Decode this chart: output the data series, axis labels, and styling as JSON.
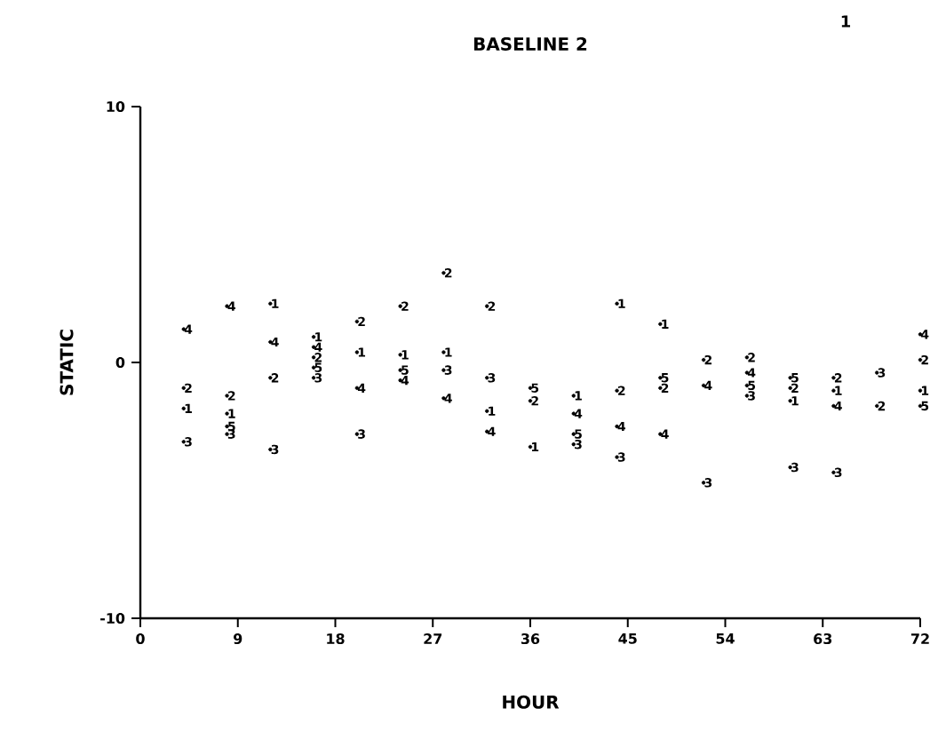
{
  "chart_data": {
    "type": "scatter",
    "title": "BASELINE  2",
    "xlabel": "HOUR",
    "ylabel": "STATIC",
    "annotations": [
      "1"
    ],
    "xlim": [
      0,
      72
    ],
    "xticks": [
      0,
      9,
      18,
      27,
      36,
      45,
      54,
      63,
      72
    ],
    "ylim": [
      -10,
      10
    ],
    "yticks": [
      -10,
      0,
      10
    ],
    "series": [
      {
        "name": "1",
        "color": "#000000",
        "x": [
          4,
          8,
          12,
          16,
          20,
          24,
          28,
          32,
          36,
          40,
          44,
          48,
          60,
          64,
          72
        ],
        "values": [
          -1.8,
          -2.0,
          2.3,
          1.0,
          0.4,
          0.3,
          0.4,
          -1.9,
          -3.3,
          -1.3,
          2.3,
          1.5,
          -1.5,
          -1.1,
          -1.1
        ]
      },
      {
        "name": "2",
        "color": "#000000",
        "x": [
          4,
          8,
          12,
          16,
          20,
          24,
          28,
          32,
          36,
          44,
          48,
          52,
          56,
          60,
          64,
          68,
          72
        ],
        "values": [
          -1.0,
          -1.3,
          -0.6,
          0.2,
          1.6,
          2.2,
          3.5,
          2.2,
          -1.5,
          -1.1,
          -1.0,
          0.1,
          0.2,
          -1.0,
          -0.6,
          -1.7,
          0.1
        ]
      },
      {
        "name": "3",
        "color": "#000000",
        "x": [
          4,
          8,
          12,
          16,
          20,
          28,
          32,
          40,
          44,
          52,
          56,
          60,
          64,
          68
        ],
        "values": [
          -3.1,
          -2.8,
          -3.4,
          -0.6,
          -2.8,
          -0.3,
          -0.6,
          -3.2,
          -3.7,
          -4.7,
          -1.3,
          -4.1,
          -4.3,
          -0.4
        ]
      },
      {
        "name": "4",
        "color": "#000000",
        "x": [
          4,
          8,
          12,
          16,
          20,
          24,
          28,
          32,
          40,
          44,
          48,
          52,
          56,
          64,
          72
        ],
        "values": [
          1.3,
          2.2,
          0.8,
          0.6,
          -1.0,
          -0.7,
          -1.4,
          -2.7,
          -2.0,
          -2.5,
          -2.8,
          -0.9,
          -0.4,
          -1.7,
          1.1
        ]
      },
      {
        "name": "5",
        "color": "#000000",
        "x": [
          8,
          16,
          24,
          36,
          40,
          48,
          56,
          60,
          72
        ],
        "values": [
          -2.5,
          -0.2,
          -0.3,
          -1.0,
          -2.8,
          -0.6,
          -0.9,
          -0.6,
          -1.7
        ]
      }
    ]
  }
}
